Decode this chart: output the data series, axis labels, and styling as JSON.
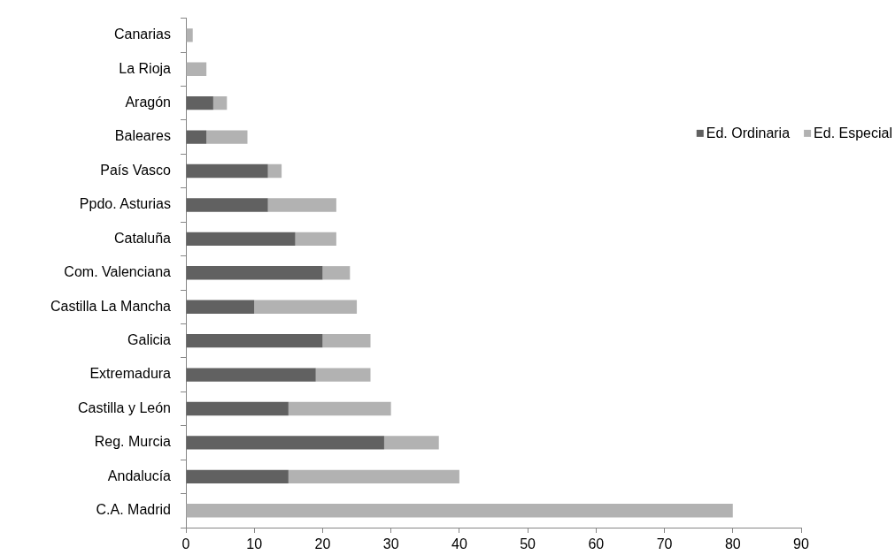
{
  "chart_data": {
    "type": "bar",
    "orientation": "horizontal",
    "stacked": true,
    "categories": [
      "Canarias",
      "La Rioja",
      "Aragón",
      "Baleares",
      "País Vasco",
      "Ppdo. Asturias",
      "Cataluña",
      "Com. Valenciana",
      "Castilla La Mancha",
      "Galicia",
      "Extremadura",
      "Castilla y León",
      "Reg. Murcia",
      "Andalucía",
      "C.A. Madrid"
    ],
    "series": [
      {
        "name": "Ed. Ordinaria",
        "color": "#616161",
        "values": [
          0,
          0,
          4,
          3,
          12,
          12,
          16,
          20,
          10,
          20,
          19,
          15,
          29,
          15,
          0
        ]
      },
      {
        "name": "Ed. Especial",
        "color": "#b2b2b2",
        "values": [
          1,
          3,
          2,
          6,
          2,
          10,
          6,
          4,
          15,
          7,
          8,
          15,
          8,
          25,
          80
        ]
      }
    ],
    "xlim": [
      0,
      90
    ],
    "xticks": [
      0,
      10,
      20,
      30,
      40,
      50,
      60,
      70,
      80,
      90
    ],
    "legend": "right"
  }
}
